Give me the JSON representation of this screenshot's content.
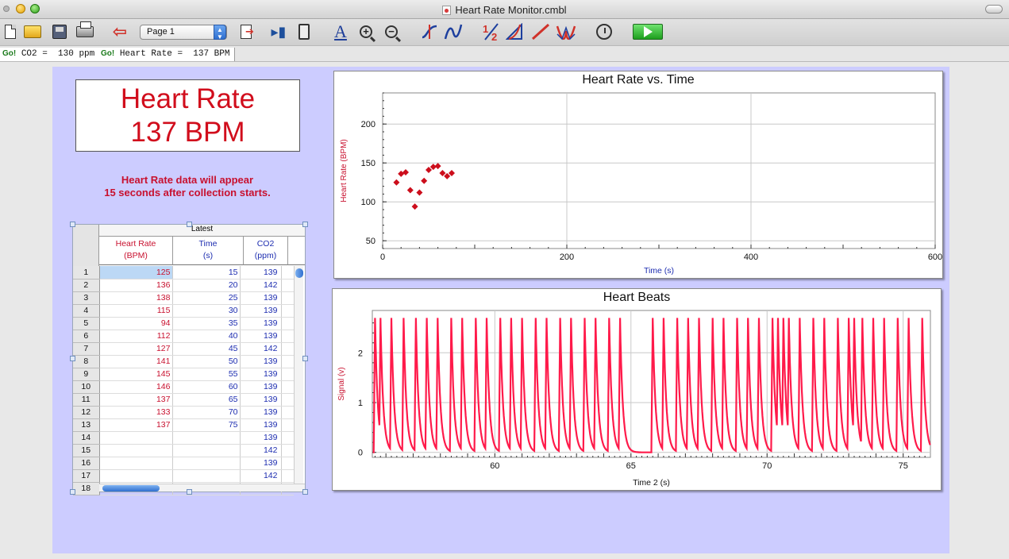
{
  "window": {
    "title": "Heart Rate Monitor.cmbl"
  },
  "toolbar": {
    "page_select": "Page 1",
    "icons": [
      "new-doc-icon",
      "open-folder-icon",
      "save-disk-icon",
      "print-icon",
      "previous-page-icon",
      "page-select",
      "next-page-icon",
      "data-browser-icon",
      "calculator-icon",
      "autoscale-icon",
      "zoom-in-icon",
      "zoom-out-icon",
      "examine-icon",
      "interpolate-icon",
      "integral-icon",
      "tangent-icon",
      "linear-fit-icon",
      "curve-fit-icon",
      "data-collection-icon",
      "collect-icon"
    ]
  },
  "meters": [
    {
      "go": "Go!",
      "label": "CO2 =  130 ppm"
    },
    {
      "go": "Go!",
      "label": "Heart Rate =  137 BPM"
    }
  ],
  "display": {
    "line1": "Heart Rate",
    "line2": "137 BPM"
  },
  "note": {
    "line1": "Heart Rate data will appear",
    "line2": "15 seconds after collection starts."
  },
  "table": {
    "group": "Latest",
    "columns": [
      {
        "name": "Heart Rate",
        "unit": "(BPM)"
      },
      {
        "name": "Time",
        "unit": "(s)"
      },
      {
        "name": "CO2",
        "unit": "(ppm)"
      }
    ],
    "rows": [
      [
        "1",
        "125",
        "15",
        "139"
      ],
      [
        "2",
        "136",
        "20",
        "142"
      ],
      [
        "3",
        "138",
        "25",
        "139"
      ],
      [
        "4",
        "115",
        "30",
        "139"
      ],
      [
        "5",
        "94",
        "35",
        "139"
      ],
      [
        "6",
        "112",
        "40",
        "139"
      ],
      [
        "7",
        "127",
        "45",
        "142"
      ],
      [
        "8",
        "141",
        "50",
        "139"
      ],
      [
        "9",
        "145",
        "55",
        "139"
      ],
      [
        "10",
        "146",
        "60",
        "139"
      ],
      [
        "11",
        "137",
        "65",
        "139"
      ],
      [
        "12",
        "133",
        "70",
        "139"
      ],
      [
        "13",
        "137",
        "75",
        "139"
      ],
      [
        "14",
        "",
        "",
        "139"
      ],
      [
        "15",
        "",
        "",
        "142"
      ],
      [
        "16",
        "",
        "",
        "139"
      ],
      [
        "17",
        "",
        "",
        "142"
      ],
      [
        "18",
        "",
        "",
        ""
      ]
    ]
  },
  "colors": {
    "page_bg": "#ccccff",
    "hr_red": "#d10d1c",
    "blue_text": "#1d2db0",
    "signal": "#ff1a4a"
  },
  "chart_data": [
    {
      "type": "scatter",
      "title": "Heart Rate vs. Time",
      "xlabel": "Time (s)",
      "ylabel": "Heart Rate (BPM)",
      "xlim": [
        0,
        600
      ],
      "ylim": [
        40,
        240
      ],
      "xticks": [
        0,
        200,
        400,
        600
      ],
      "yticks": [
        50,
        100,
        150,
        200
      ],
      "grid": true,
      "x": [
        15,
        20,
        25,
        30,
        35,
        40,
        45,
        50,
        55,
        60,
        65,
        70,
        75
      ],
      "y": [
        125,
        136,
        138,
        115,
        94,
        112,
        127,
        141,
        145,
        146,
        137,
        133,
        137
      ]
    },
    {
      "type": "line",
      "title": "Heart Beats",
      "xlabel": "Time 2 (s)",
      "ylabel": "Signal (v)",
      "xlim": [
        55.5,
        76
      ],
      "ylim": [
        -0.1,
        2.85
      ],
      "xticks": [
        60,
        65,
        70,
        75
      ],
      "yticks": [
        0,
        1,
        2
      ],
      "grid": true,
      "peak_value": 2.7,
      "beat_times": [
        55.6,
        55.8,
        56.2,
        56.65,
        57.1,
        57.5,
        57.9,
        58.4,
        58.8,
        59.3,
        59.7,
        60.2,
        60.6,
        61.0,
        61.5,
        61.9,
        62.4,
        62.8,
        63.3,
        63.7,
        64.2,
        64.6,
        65.8,
        66.2,
        66.7,
        67.1,
        67.5,
        68.0,
        68.4,
        68.9,
        69.3,
        69.7,
        70.2,
        70.4,
        70.6,
        70.8,
        71.2,
        71.7,
        72.1,
        72.6,
        73.0,
        73.2,
        73.5,
        73.9,
        74.3,
        74.8,
        75.2,
        75.7
      ]
    }
  ]
}
